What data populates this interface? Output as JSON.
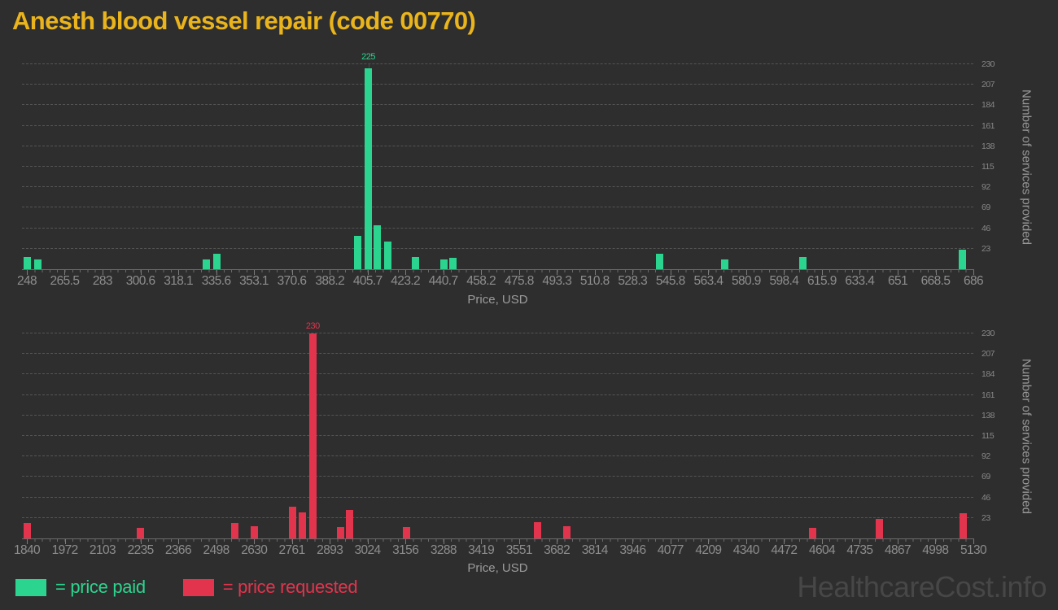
{
  "page": {
    "title": "Anesth blood vessel repair (code 00770)",
    "title_color": "#eab41c",
    "background_color": "#2e2e2e",
    "watermark": "HealthcareCost.info"
  },
  "legend": {
    "items": [
      {
        "label": "= price paid",
        "color": "#2bd58f"
      },
      {
        "label": "= price requested",
        "color": "#e2344d"
      }
    ]
  },
  "chart_data": [
    {
      "type": "bar",
      "series_name": "price paid",
      "color": "#2bd58f",
      "xlabel": "Price, USD",
      "ylabel": "Number of services provided",
      "grid": "horizontal-dashed",
      "ylim": [
        0,
        230
      ],
      "y_ticks": [
        23,
        46,
        69,
        92,
        115,
        138,
        161,
        184,
        207,
        230
      ],
      "x_ticks": [
        248,
        265.5,
        283,
        300.6,
        318.1,
        335.6,
        353.1,
        370.6,
        388.2,
        405.7,
        423.2,
        440.7,
        458.2,
        475.8,
        493.3,
        510.8,
        528.3,
        545.8,
        563.4,
        580.9,
        598.4,
        615.9,
        633.4,
        651,
        668.5,
        686
      ],
      "bars": [
        {
          "price": 248,
          "count": 14
        },
        {
          "price": 253,
          "count": 11
        },
        {
          "price": 331,
          "count": 11
        },
        {
          "price": 336,
          "count": 17
        },
        {
          "price": 401,
          "count": 37
        },
        {
          "price": 406,
          "count": 225
        },
        {
          "price": 410,
          "count": 49
        },
        {
          "price": 415,
          "count": 31
        },
        {
          "price": 428,
          "count": 14
        },
        {
          "price": 441,
          "count": 11
        },
        {
          "price": 445,
          "count": 13
        },
        {
          "price": 541,
          "count": 17
        },
        {
          "price": 571,
          "count": 11
        },
        {
          "price": 607,
          "count": 14
        },
        {
          "price": 681,
          "count": 22
        }
      ],
      "annotations": [
        {
          "price": 406,
          "label": "225"
        }
      ]
    },
    {
      "type": "bar",
      "series_name": "price requested",
      "color": "#e2344d",
      "xlabel": "Price, USD",
      "ylabel": "Number of services provided",
      "grid": "horizontal-dashed",
      "ylim": [
        0,
        230
      ],
      "y_ticks": [
        23,
        46,
        69,
        92,
        115,
        138,
        161,
        184,
        207,
        230
      ],
      "x_ticks": [
        1840,
        1972,
        2103,
        2235,
        2366,
        2498,
        2630,
        2761,
        2893,
        3024,
        3156,
        3288,
        3419,
        3551,
        3682,
        3814,
        3946,
        4077,
        4209,
        4340,
        4472,
        4604,
        4735,
        4867,
        4998,
        5130
      ],
      "bars": [
        {
          "price": 1840,
          "count": 17
        },
        {
          "price": 2235,
          "count": 12
        },
        {
          "price": 2564,
          "count": 17
        },
        {
          "price": 2632,
          "count": 14
        },
        {
          "price": 2765,
          "count": 36
        },
        {
          "price": 2797,
          "count": 29
        },
        {
          "price": 2834,
          "count": 230
        },
        {
          "price": 2930,
          "count": 13
        },
        {
          "price": 2961,
          "count": 32
        },
        {
          "price": 3159,
          "count": 13
        },
        {
          "price": 3614,
          "count": 18
        },
        {
          "price": 3716,
          "count": 14
        },
        {
          "price": 4571,
          "count": 12
        },
        {
          "price": 4803,
          "count": 22
        },
        {
          "price": 5094,
          "count": 28
        }
      ],
      "annotations": [
        {
          "price": 2834,
          "label": "230"
        }
      ]
    }
  ]
}
